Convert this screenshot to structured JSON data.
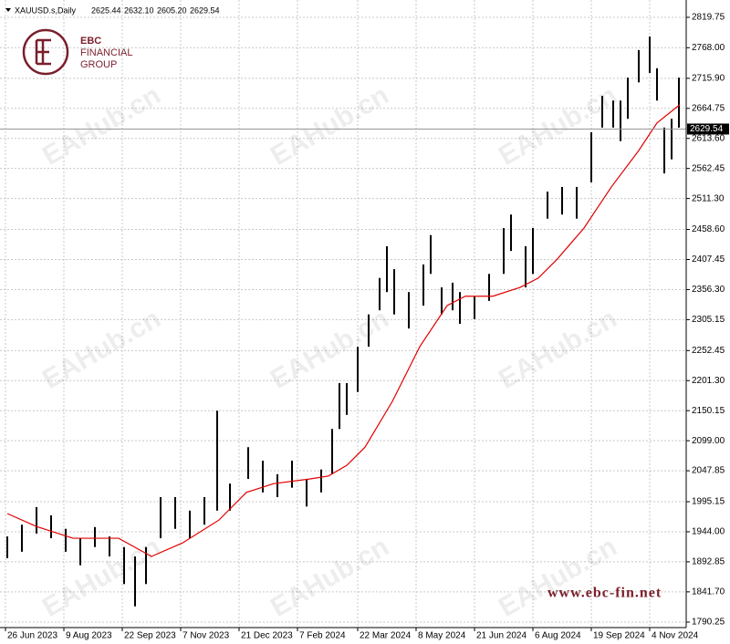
{
  "header": {
    "symbol": "XAUUSD.s,Daily",
    "open": "2625.44",
    "high": "2632.10",
    "low": "2605.20",
    "close": "2629.54"
  },
  "logo": {
    "line1": "EBC",
    "line2": "FINANCIAL",
    "line3": "GROUP"
  },
  "watermark": "EAHub.cn",
  "website": "www.ebc-fin.net",
  "chart_data": {
    "type": "ohlc",
    "color": "#000000",
    "x": [
      1,
      9,
      17,
      25,
      33,
      41,
      49,
      57,
      65,
      71,
      77,
      85,
      93,
      101,
      109,
      116,
      123,
      133,
      141,
      149,
      157,
      165,
      173,
      179,
      183,
      187,
      193,
      199,
      205,
      209,
      213,
      221,
      229,
      233,
      239,
      245,
      249,
      257,
      265,
      273,
      277,
      285,
      289,
      297,
      305,
      313,
      321,
      327,
      333,
      337,
      341,
      347,
      353,
      357,
      361,
      365,
      369
    ],
    "high": [
      1936,
      1956,
      1986,
      1972,
      1949,
      1933,
      1952,
      1936,
      1918,
      1902,
      1918,
      2003,
      2003,
      1980,
      2003,
      2150,
      2026,
      2088,
      2065,
      2042,
      2065,
      2034,
      2050,
      2119,
      2197,
      2197,
      2259,
      2314,
      2376,
      2430,
      2391,
      2352,
      2399,
      2449,
      2360,
      2368,
      2352,
      2345,
      2383,
      2461,
      2484,
      2430,
      2461,
      2523,
      2531,
      2531,
      2624,
      2686,
      2678,
      2678,
      2717,
      2764,
      2787,
      2733,
      2632,
      2647,
      2717
    ],
    "low": [
      1899,
      1910,
      1941,
      1933,
      1910,
      1887,
      1918,
      1902,
      1855,
      1817,
      1855,
      1933,
      1949,
      1933,
      1956,
      1980,
      1980,
      2034,
      2011,
      2003,
      2019,
      1987,
      2011,
      2042,
      2119,
      2143,
      2182,
      2259,
      2321,
      2352,
      2314,
      2290,
      2329,
      2383,
      2314,
      2321,
      2298,
      2306,
      2337,
      2383,
      2422,
      2360,
      2383,
      2477,
      2484,
      2477,
      2539,
      2632,
      2632,
      2609,
      2647,
      2709,
      2725,
      2678,
      2554,
      2578,
      2632
    ],
    "ma_x": [
      1,
      17,
      37,
      62,
      80,
      97,
      117,
      132,
      147,
      167,
      177,
      187,
      197,
      212,
      227,
      242,
      252,
      267,
      282,
      292,
      302,
      317,
      332,
      347,
      357,
      369.5
    ],
    "ma_values": [
      1975,
      1953,
      1933,
      1933,
      1902,
      1925,
      1964,
      2011,
      2026,
      2034,
      2039,
      2057,
      2088,
      2166,
      2259,
      2329,
      2345,
      2345,
      2360,
      2376,
      2407,
      2461,
      2531,
      2593,
      2640,
      2671
    ],
    "ma_color": "#e00000",
    "last_price": 2629.54,
    "xlim": [
      -3,
      373
    ],
    "xticks": [
      {
        "value": 0,
        "label": "26 Jun 2023"
      },
      {
        "value": 32,
        "label": "9 Aug 2023"
      },
      {
        "value": 64,
        "label": "22 Sep 2023"
      },
      {
        "value": 96,
        "label": "7 Nov 2023"
      },
      {
        "value": 128,
        "label": "21 Dec 2023"
      },
      {
        "value": 160,
        "label": "7 Feb 2024"
      },
      {
        "value": 193,
        "label": "22 Mar 2024"
      },
      {
        "value": 225,
        "label": "8 May 2024"
      },
      {
        "value": 257,
        "label": "21 Jun 2024"
      },
      {
        "value": 289,
        "label": "6 Aug 2024"
      },
      {
        "value": 321,
        "label": "19 Sep 2024"
      },
      {
        "value": 353,
        "label": "4 Nov 2024"
      }
    ],
    "ylim": [
      1780.9,
      2836.8
    ],
    "yticks": [
      2819.75,
      {
        "value": 2768,
        "label": "2768.00"
      },
      {
        "value": 2715.9,
        "label": "2715.90"
      },
      2664.75,
      {
        "value": 2613.6,
        "label": "2613.60"
      },
      2562.45,
      {
        "value": 2511.3,
        "label": "2511.30"
      },
      {
        "value": 2458.6,
        "label": "2458.60"
      },
      2407.45,
      {
        "value": 2356.3,
        "label": "2356.30"
      },
      2305.15,
      2252.45,
      {
        "value": 2201.3,
        "label": "2201.30"
      },
      2150.15,
      {
        "value": 2099,
        "label": "2099.00"
      },
      2047.85,
      1995.15,
      {
        "value": 1944,
        "label": "1944.00"
      },
      1892.85,
      {
        "value": 1841.7,
        "label": "1841.70"
      },
      1790.25
    ],
    "grid": true
  }
}
